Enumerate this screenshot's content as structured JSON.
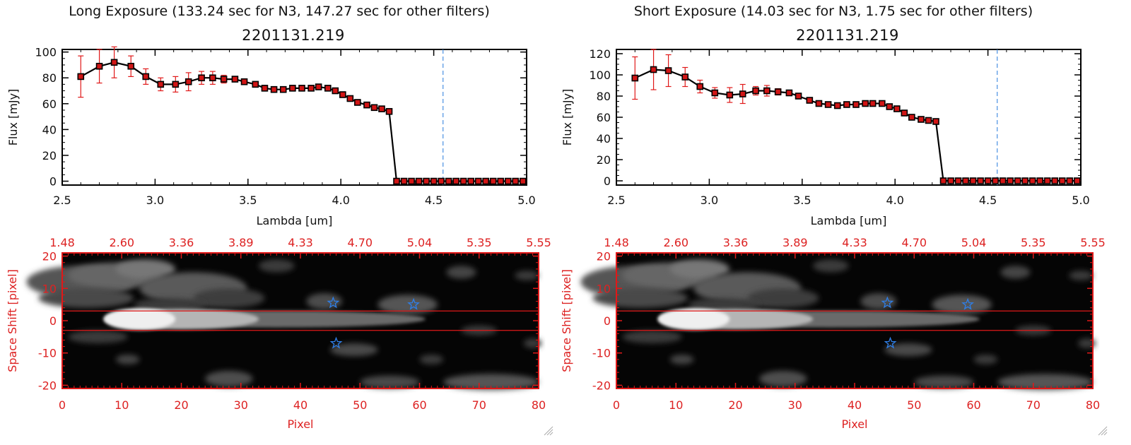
{
  "panels": [
    {
      "title": "Long Exposure (133.24 sec for N3, 147.27 sec for other filters)",
      "chart_data": {
        "type": "line",
        "title": "2201131.219",
        "xlabel": "Lambda [um]",
        "ylabel": "Flux [mJy]",
        "xlim": [
          2.5,
          5.0
        ],
        "ylim": [
          -3,
          102
        ],
        "xticks": [
          "2.5",
          "3.0",
          "3.5",
          "4.0",
          "4.5",
          "5.0"
        ],
        "yticks": [
          "0",
          "20",
          "40",
          "60",
          "80",
          "100"
        ],
        "vline_x": 4.55,
        "x": [
          2.6,
          2.7,
          2.78,
          2.87,
          2.95,
          3.03,
          3.11,
          3.18,
          3.25,
          3.31,
          3.37,
          3.43,
          3.48,
          3.54,
          3.59,
          3.64,
          3.69,
          3.74,
          3.79,
          3.84,
          3.88,
          3.93,
          3.97,
          4.01,
          4.05,
          4.09,
          4.14,
          4.18,
          4.22,
          4.26,
          4.3,
          4.34,
          4.38,
          4.42,
          4.46,
          4.5,
          4.54,
          4.58,
          4.62,
          4.66,
          4.7,
          4.74,
          4.78,
          4.82,
          4.86,
          4.9,
          4.94,
          4.98
        ],
        "y": [
          81,
          89,
          92,
          89,
          81,
          75,
          75,
          77,
          80,
          80,
          79,
          79,
          77,
          75,
          72,
          71,
          71,
          72,
          72,
          72,
          73,
          72,
          70,
          67,
          64,
          61,
          59,
          57,
          56,
          54,
          0,
          0,
          0,
          0,
          0,
          0,
          0,
          0,
          0,
          0,
          0,
          0,
          0,
          0,
          0,
          0,
          0,
          0
        ],
        "yerr": [
          16,
          13,
          12,
          8,
          6,
          5,
          6,
          7,
          5,
          5,
          3,
          2,
          2,
          1,
          1,
          1,
          1,
          1,
          1,
          1,
          1,
          1,
          1,
          1,
          1,
          1,
          1,
          1,
          1,
          1,
          0,
          0,
          0,
          0,
          0,
          0,
          0,
          0,
          0,
          0,
          0,
          0,
          0,
          0,
          0,
          0,
          0,
          0
        ]
      },
      "image_data": {
        "type": "heatmap",
        "xlabel": "Pixel",
        "ylabel": "Space Shift [pixel]",
        "xlim": [
          0,
          80
        ],
        "ylim": [
          -21,
          21
        ],
        "xticks": [
          "0",
          "10",
          "20",
          "30",
          "40",
          "50",
          "60",
          "70",
          "80"
        ],
        "yticks": [
          "20",
          "10",
          "0",
          "-10",
          "-20"
        ],
        "top_ticks": [
          "1.48",
          "2.60",
          "3.36",
          "3.89",
          "4.33",
          "4.70",
          "5.04",
          "5.35",
          "5.55"
        ],
        "hlines_y": [
          3,
          -3
        ],
        "stars": [
          {
            "x": 45.5,
            "y": 5.5
          },
          {
            "x": 59,
            "y": 5
          },
          {
            "x": 46,
            "y": -7
          }
        ]
      }
    },
    {
      "title": "Short Exposure (14.03 sec for N3, 1.75 sec for other filters)",
      "chart_data": {
        "type": "line",
        "title": "2201131.219",
        "xlabel": "Lambda [um]",
        "ylabel": "Flux [mJy]",
        "xlim": [
          2.5,
          5.0
        ],
        "ylim": [
          -4,
          124
        ],
        "xticks": [
          "2.5",
          "3.0",
          "3.5",
          "4.0",
          "4.5",
          "5.0"
        ],
        "yticks": [
          "0",
          "20",
          "40",
          "60",
          "80",
          "100",
          "120"
        ],
        "vline_x": 4.55,
        "x": [
          2.6,
          2.7,
          2.78,
          2.87,
          2.95,
          3.03,
          3.11,
          3.18,
          3.25,
          3.31,
          3.37,
          3.43,
          3.48,
          3.54,
          3.59,
          3.64,
          3.69,
          3.74,
          3.79,
          3.84,
          3.88,
          3.93,
          3.97,
          4.01,
          4.05,
          4.09,
          4.14,
          4.18,
          4.22,
          4.26,
          4.3,
          4.34,
          4.38,
          4.42,
          4.46,
          4.5,
          4.54,
          4.58,
          4.62,
          4.66,
          4.7,
          4.74,
          4.78,
          4.82,
          4.86,
          4.9,
          4.94,
          4.98
        ],
        "y": [
          97,
          105,
          104,
          98,
          89,
          83,
          81,
          82,
          85,
          85,
          84,
          83,
          80,
          76,
          73,
          72,
          71,
          72,
          72,
          73,
          73,
          73,
          70,
          68,
          64,
          60,
          58,
          57,
          56,
          0,
          0,
          0,
          0,
          0,
          0,
          0,
          0,
          0,
          0,
          0,
          0,
          0,
          0,
          0,
          0,
          0,
          0,
          0
        ],
        "yerr": [
          20,
          19,
          15,
          9,
          6,
          5,
          7,
          9,
          4,
          5,
          3,
          2,
          2,
          1,
          1,
          1,
          1,
          1,
          1,
          1,
          1,
          1,
          1,
          1,
          1,
          1,
          1,
          1,
          1,
          0,
          0,
          0,
          0,
          0,
          0,
          0,
          0,
          0,
          0,
          0,
          0,
          0,
          0,
          0,
          0,
          0,
          0,
          0
        ]
      },
      "image_data": {
        "type": "heatmap",
        "xlabel": "Pixel",
        "ylabel": "Space Shift [pixel]",
        "xlim": [
          0,
          80
        ],
        "ylim": [
          -21,
          21
        ],
        "xticks": [
          "0",
          "10",
          "20",
          "30",
          "40",
          "50",
          "60",
          "70",
          "80"
        ],
        "yticks": [
          "20",
          "10",
          "0",
          "-10",
          "-20"
        ],
        "top_ticks": [
          "1.48",
          "2.60",
          "3.36",
          "3.89",
          "4.33",
          "4.70",
          "5.04",
          "5.35",
          "5.55"
        ],
        "hlines_y": [
          3,
          -3
        ],
        "stars": [
          {
            "x": 45.5,
            "y": 5.5
          },
          {
            "x": 59,
            "y": 5
          },
          {
            "x": 46,
            "y": -7
          }
        ]
      }
    }
  ],
  "colors": {
    "line": "#000000",
    "marker": "#d11515",
    "errorbar": "#e01818",
    "vline": "#4a90e2",
    "image_frame": "#e01818",
    "star": "#2f7fe8"
  }
}
